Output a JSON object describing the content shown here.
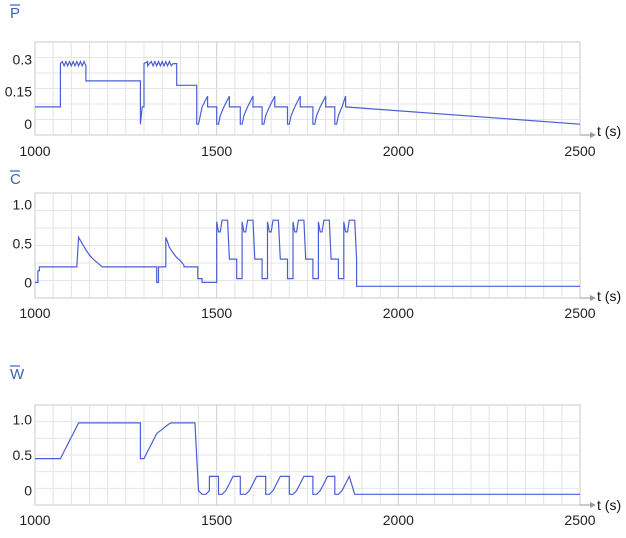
{
  "chart_data": [
    {
      "type": "line",
      "title": "P",
      "xlabel": "t (s)",
      "xlim": [
        1000,
        2500
      ],
      "ylim": [
        -0.05,
        0.38
      ],
      "yticks": [
        0.3,
        0.15,
        0
      ],
      "ytick_labels": [
        "0.3",
        "0.15",
        "0"
      ],
      "xticks": [
        1000,
        1500,
        2000,
        2500
      ],
      "xtick_labels": [
        "1000",
        "1500",
        "2000",
        "2500"
      ],
      "grid": true,
      "color": "#4a5fd6",
      "series": [
        {
          "x": [
            1000,
            1070,
            1070,
            1075,
            1080,
            1085,
            1090,
            1095,
            1100,
            1105,
            1110,
            1115,
            1120,
            1125,
            1130,
            1135,
            1140,
            1140,
            1290,
            1290,
            1295,
            1300,
            1300,
            1310,
            1310,
            1320,
            1325,
            1330,
            1335,
            1340,
            1345,
            1350,
            1355,
            1360,
            1365,
            1370,
            1375,
            1380,
            1385,
            1390,
            1390,
            1445,
            1445,
            1450,
            1455,
            1460,
            1475,
            1475,
            1500,
            1500,
            1505,
            1510,
            1520,
            1535,
            1535,
            1565,
            1565,
            1570,
            1575,
            1585,
            1600,
            1600,
            1625,
            1625,
            1630,
            1635,
            1645,
            1660,
            1660,
            1695,
            1695,
            1700,
            1705,
            1715,
            1730,
            1730,
            1765,
            1765,
            1770,
            1775,
            1785,
            1800,
            1800,
            1825,
            1825,
            1830,
            1835,
            1845,
            1855,
            1855,
            2500
          ],
          "y": [
            0.08,
            0.08,
            0.28,
            0.29,
            0.27,
            0.29,
            0.27,
            0.29,
            0.27,
            0.29,
            0.27,
            0.29,
            0.27,
            0.29,
            0.27,
            0.29,
            0.27,
            0.2,
            0.2,
            0.0,
            0.08,
            0.08,
            0.28,
            0.29,
            0.27,
            0.29,
            0.27,
            0.29,
            0.27,
            0.29,
            0.27,
            0.29,
            0.27,
            0.29,
            0.27,
            0.29,
            0.27,
            0.28,
            0.28,
            0.28,
            0.18,
            0.18,
            0.0,
            0.0,
            0.04,
            0.08,
            0.13,
            0.08,
            0.08,
            0.0,
            0.0,
            0.04,
            0.08,
            0.13,
            0.08,
            0.08,
            0.0,
            0.0,
            0.04,
            0.08,
            0.13,
            0.08,
            0.08,
            0.0,
            0.0,
            0.04,
            0.08,
            0.13,
            0.08,
            0.08,
            0.0,
            0.0,
            0.04,
            0.08,
            0.13,
            0.08,
            0.08,
            0.0,
            0.0,
            0.04,
            0.08,
            0.13,
            0.08,
            0.08,
            0.0,
            0.0,
            0.04,
            0.08,
            0.13,
            0.08,
            0.0
          ]
        }
      ]
    },
    {
      "type": "line",
      "title": "C",
      "xlabel": "t (s)",
      "xlim": [
        1000,
        2500
      ],
      "ylim": [
        -0.2,
        1.15
      ],
      "yticks": [
        1.0,
        0.5,
        0
      ],
      "ytick_labels": [
        "1.0",
        "0.5",
        "0"
      ],
      "xticks": [
        1000,
        1500,
        2000,
        2500
      ],
      "xtick_labels": [
        "1000",
        "1500",
        "2000",
        "2500"
      ],
      "grid": true,
      "color": "#4a5fd6",
      "series": [
        {
          "x": [
            1000,
            1008,
            1008,
            1012,
            1012,
            1115,
            1120,
            1130,
            1140,
            1150,
            1160,
            1170,
            1180,
            1185,
            1185,
            1335,
            1335,
            1340,
            1340,
            1360,
            1360,
            1365,
            1370,
            1380,
            1390,
            1400,
            1410,
            1410,
            1448,
            1448,
            1460,
            1460,
            1500,
            1500,
            1505,
            1510,
            1515,
            1530,
            1535,
            1535,
            1555,
            1555,
            1570,
            1570,
            1575,
            1580,
            1585,
            1600,
            1605,
            1605,
            1625,
            1625,
            1640,
            1640,
            1645,
            1650,
            1655,
            1670,
            1675,
            1675,
            1695,
            1695,
            1710,
            1710,
            1715,
            1720,
            1725,
            1740,
            1745,
            1745,
            1765,
            1765,
            1780,
            1780,
            1785,
            1790,
            1795,
            1810,
            1815,
            1815,
            1835,
            1835,
            1850,
            1850,
            1855,
            1860,
            1865,
            1880,
            1885,
            1885,
            2500
          ],
          "y": [
            0.0,
            0.0,
            0.15,
            0.15,
            0.2,
            0.2,
            0.58,
            0.5,
            0.42,
            0.35,
            0.3,
            0.26,
            0.22,
            0.2,
            0.2,
            0.2,
            0.0,
            0.0,
            0.2,
            0.2,
            0.58,
            0.52,
            0.45,
            0.38,
            0.32,
            0.28,
            0.22,
            0.2,
            0.2,
            0.05,
            0.05,
            0.0,
            0.0,
            0.78,
            0.65,
            0.65,
            0.8,
            0.8,
            0.3,
            0.3,
            0.3,
            0.05,
            0.05,
            0.78,
            0.65,
            0.65,
            0.8,
            0.8,
            0.3,
            0.3,
            0.3,
            0.05,
            0.05,
            0.78,
            0.65,
            0.65,
            0.8,
            0.8,
            0.3,
            0.3,
            0.3,
            0.05,
            0.05,
            0.78,
            0.65,
            0.65,
            0.8,
            0.8,
            0.3,
            0.3,
            0.3,
            0.05,
            0.05,
            0.78,
            0.65,
            0.65,
            0.8,
            0.8,
            0.3,
            0.3,
            0.3,
            0.05,
            0.05,
            0.78,
            0.65,
            0.65,
            0.8,
            0.8,
            0.3,
            -0.05,
            -0.05
          ]
        }
      ]
    },
    {
      "type": "line",
      "title": "W",
      "xlabel": "t (s)",
      "xlim": [
        1000,
        2500
      ],
      "ylim": [
        -0.2,
        1.2
      ],
      "yticks": [
        1.0,
        0.5,
        0
      ],
      "ytick_labels": [
        "1.0",
        "0.5",
        "0"
      ],
      "xticks": [
        1000,
        1500,
        2000,
        2500
      ],
      "xtick_labels": [
        "1000",
        "1500",
        "2000",
        "2500"
      ],
      "grid": true,
      "color": "#4a5fd6",
      "series": [
        {
          "x": [
            1000,
            1070,
            1075,
            1080,
            1085,
            1090,
            1095,
            1100,
            1105,
            1110,
            1115,
            1120,
            1125,
            1130,
            1135,
            1140,
            1290,
            1290,
            1300,
            1305,
            1310,
            1315,
            1320,
            1325,
            1330,
            1335,
            1340,
            1345,
            1350,
            1355,
            1360,
            1365,
            1370,
            1375,
            1380,
            1385,
            1390,
            1395,
            1400,
            1440,
            1450,
            1460,
            1470,
            1480,
            1480,
            1505,
            1505,
            1515,
            1525,
            1535,
            1545,
            1545,
            1565,
            1565,
            1580,
            1590,
            1600,
            1610,
            1610,
            1635,
            1635,
            1645,
            1655,
            1665,
            1675,
            1675,
            1700,
            1700,
            1710,
            1720,
            1730,
            1740,
            1740,
            1765,
            1765,
            1775,
            1785,
            1795,
            1805,
            1805,
            1825,
            1825,
            1835,
            1845,
            1855,
            1865,
            1865,
            1880,
            1880,
            2500
          ],
          "y": [
            0.45,
            0.45,
            0.5,
            0.55,
            0.6,
            0.65,
            0.7,
            0.75,
            0.8,
            0.85,
            0.9,
            0.95,
            0.95,
            0.95,
            0.95,
            0.95,
            0.95,
            0.45,
            0.45,
            0.5,
            0.55,
            0.6,
            0.65,
            0.7,
            0.75,
            0.8,
            0.82,
            0.84,
            0.86,
            0.88,
            0.9,
            0.92,
            0.94,
            0.95,
            0.95,
            0.95,
            0.95,
            0.95,
            0.95,
            0.95,
            0.0,
            -0.05,
            -0.05,
            0.0,
            0.2,
            0.2,
            -0.05,
            -0.05,
            0.0,
            0.1,
            0.2,
            0.2,
            0.2,
            -0.05,
            -0.05,
            0.0,
            0.1,
            0.2,
            0.2,
            0.2,
            -0.05,
            -0.05,
            0.0,
            0.1,
            0.2,
            0.2,
            0.2,
            -0.05,
            -0.05,
            0.0,
            0.1,
            0.2,
            0.2,
            0.2,
            -0.05,
            -0.05,
            0.0,
            0.1,
            0.2,
            0.2,
            0.2,
            -0.05,
            -0.05,
            0.0,
            0.1,
            0.2,
            0.2,
            -0.05,
            -0.05,
            -0.05
          ]
        }
      ]
    }
  ]
}
